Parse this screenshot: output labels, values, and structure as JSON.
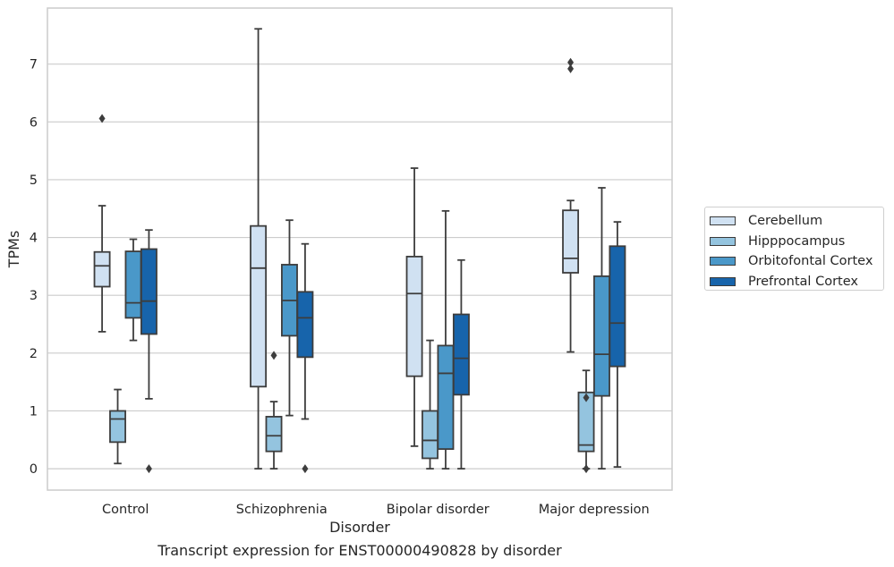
{
  "chart_data": {
    "type": "box",
    "title": "Transcript expression for ENST00000490828 by disorder",
    "xlabel": "Disorder",
    "ylabel": "TPMs",
    "ylim": [
      -0.37,
      7.97
    ],
    "yticks": [
      0,
      1,
      2,
      3,
      4,
      5,
      6,
      7
    ],
    "grid": true,
    "legend_position": "right",
    "categories": [
      "Control",
      "Schizophrenia",
      "Bipolar disorder",
      "Major depression"
    ],
    "series": [
      {
        "name": "Cerebellum",
        "color": "#d0e1f2",
        "boxes": [
          {
            "whisker_low": 2.37,
            "q1": 3.15,
            "median": 3.51,
            "q3": 3.75,
            "whisker_high": 4.55,
            "outliers": [
              6.06
            ]
          },
          {
            "whisker_low": 0.0,
            "q1": 1.42,
            "median": 3.47,
            "q3": 4.2,
            "whisker_high": 7.61,
            "outliers": []
          },
          {
            "whisker_low": 0.39,
            "q1": 1.6,
            "median": 3.03,
            "q3": 3.67,
            "whisker_high": 5.2,
            "outliers": []
          },
          {
            "whisker_low": 2.02,
            "q1": 3.39,
            "median": 3.64,
            "q3": 4.47,
            "whisker_high": 4.64,
            "outliers": [
              6.92,
              7.03
            ]
          }
        ]
      },
      {
        "name": "Hipppocampus",
        "color": "#94c4df",
        "boxes": [
          {
            "whisker_low": 0.09,
            "q1": 0.46,
            "median": 0.86,
            "q3": 1.0,
            "whisker_high": 1.37,
            "outliers": []
          },
          {
            "whisker_low": 0.0,
            "q1": 0.3,
            "median": 0.57,
            "q3": 0.9,
            "whisker_high": 1.16,
            "outliers": [
              1.96
            ]
          },
          {
            "whisker_low": 0.0,
            "q1": 0.18,
            "median": 0.49,
            "q3": 1.0,
            "whisker_high": 2.22,
            "outliers": []
          },
          {
            "whisker_low": 0.0,
            "q1": 0.3,
            "median": 0.41,
            "q3": 1.32,
            "whisker_high": 1.7,
            "outliers": [
              1.23,
              0.0
            ]
          }
        ]
      },
      {
        "name": "Orbitofontal Cortex",
        "color": "#4a98c9",
        "boxes": [
          {
            "whisker_low": 2.22,
            "q1": 2.61,
            "median": 2.87,
            "q3": 3.76,
            "whisker_high": 3.97,
            "outliers": []
          },
          {
            "whisker_low": 0.92,
            "q1": 2.3,
            "median": 2.91,
            "q3": 3.53,
            "whisker_high": 4.3,
            "outliers": []
          },
          {
            "whisker_low": 0.0,
            "q1": 0.34,
            "median": 1.65,
            "q3": 2.13,
            "whisker_high": 4.46,
            "outliers": []
          },
          {
            "whisker_low": 0.0,
            "q1": 1.26,
            "median": 1.98,
            "q3": 3.33,
            "whisker_high": 4.86,
            "outliers": []
          }
        ]
      },
      {
        "name": "Prefrontal Cortex",
        "color": "#1764ab",
        "boxes": [
          {
            "whisker_low": 1.21,
            "q1": 2.33,
            "median": 2.9,
            "q3": 3.8,
            "whisker_high": 4.13,
            "outliers": [
              0.0
            ]
          },
          {
            "whisker_low": 0.86,
            "q1": 1.93,
            "median": 2.61,
            "q3": 3.06,
            "whisker_high": 3.89,
            "outliers": [
              0.0
            ]
          },
          {
            "whisker_low": 0.0,
            "q1": 1.28,
            "median": 1.91,
            "q3": 2.67,
            "whisker_high": 3.61,
            "outliers": []
          },
          {
            "whisker_low": 0.03,
            "q1": 1.77,
            "median": 2.52,
            "q3": 3.85,
            "whisker_high": 4.27,
            "outliers": []
          }
        ]
      }
    ]
  }
}
